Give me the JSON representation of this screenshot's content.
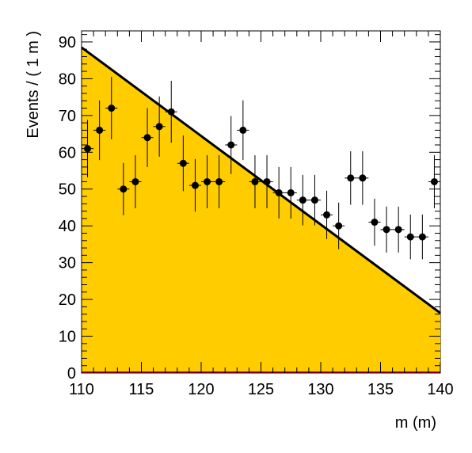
{
  "chart_data": {
    "type": "scatter",
    "title": "",
    "xlabel": "m (m)",
    "ylabel": "Events / ( 1 m )",
    "xlim": [
      110,
      140
    ],
    "ylim": [
      0,
      93
    ],
    "xticks": [
      110,
      115,
      120,
      125,
      130,
      135,
      140
    ],
    "yticks": [
      0,
      10,
      20,
      30,
      40,
      50,
      60,
      70,
      80,
      90
    ],
    "grid": false,
    "legend": "none",
    "fill_color": "#ffcc00",
    "line_color": "#000000",
    "baseline_color": "#cc0000",
    "points": {
      "x": [
        110.5,
        111.5,
        112.5,
        113.5,
        114.5,
        115.5,
        116.5,
        117.5,
        118.5,
        119.5,
        120.5,
        121.5,
        122.5,
        123.5,
        124.5,
        125.5,
        126.5,
        127.5,
        128.5,
        129.5,
        130.5,
        131.5,
        132.5,
        133.5,
        134.5,
        135.5,
        136.5,
        137.5,
        138.5,
        139.5
      ],
      "y": [
        61,
        66,
        72,
        50,
        52,
        64,
        67,
        71,
        57,
        51,
        52,
        52,
        62,
        66,
        52,
        52,
        49,
        49,
        47,
        47,
        43,
        40,
        53,
        53,
        41,
        39,
        39,
        37,
        37,
        52
      ]
    },
    "fit_line": {
      "x": [
        110,
        140
      ],
      "y": [
        88.5,
        16.3
      ]
    }
  }
}
